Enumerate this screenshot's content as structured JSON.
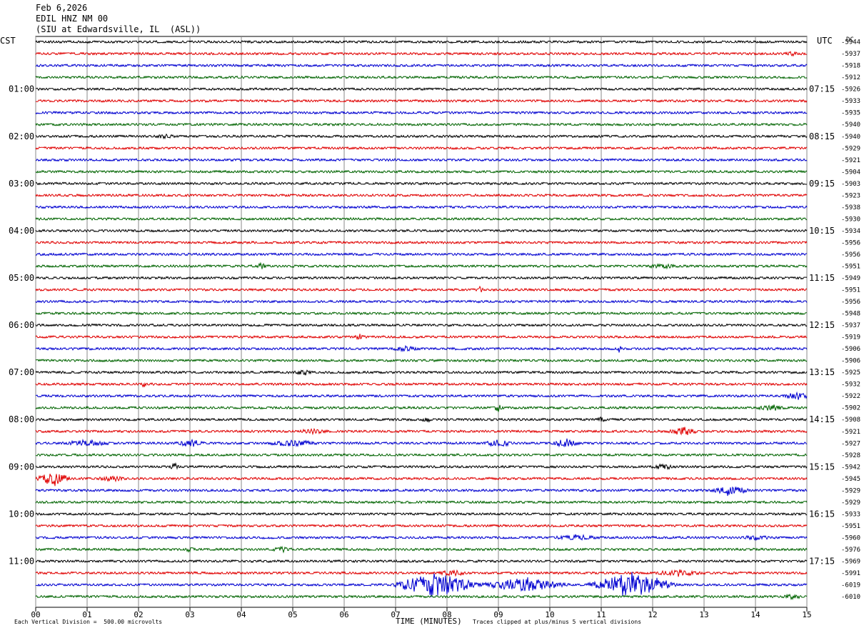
{
  "header": {
    "date": "Feb 6,2026",
    "channel": "EDIL HNZ NM 00",
    "station": "(SIU at Edwardsville, IL  (ASL))"
  },
  "left_tz": "CST",
  "right_tz": "UTC",
  "right_col_header": "DC",
  "footer": {
    "scale_note": "Each Vertical Division =  500.00 microvolts",
    "clip_note": "Traces clipped at plus/minus 5 vertical divisions"
  },
  "chart_data": {
    "type": "line",
    "title": "",
    "xlabel": "TIME (MINUTES)",
    "ylabel": "",
    "xlim": [
      0,
      15
    ],
    "x_ticks": [
      "00",
      "01",
      "02",
      "03",
      "04",
      "05",
      "06",
      "07",
      "08",
      "09",
      "10",
      "11",
      "12",
      "13",
      "14",
      "15"
    ],
    "trace_colors": [
      "#000000",
      "#e00000",
      "#0000d0",
      "#006400"
    ],
    "hour_labels_left": [
      "01:00",
      "02:00",
      "03:00",
      "04:00",
      "05:00",
      "06:00",
      "07:00",
      "08:00",
      "09:00",
      "10:00",
      "11:00"
    ],
    "hour_labels_right": [
      "07:15",
      "08:15",
      "09:15",
      "10:15",
      "11:15",
      "12:15",
      "13:15",
      "14:15",
      "15:15",
      "16:15",
      "17:15"
    ],
    "dc_offsets": [
      "-5944",
      "-5937",
      "-5918",
      "-5912",
      "-5926",
      "-5933",
      "-5935",
      "-5940",
      "-5940",
      "-5929",
      "-5921",
      "-5904",
      "-5903",
      "-5923",
      "-5938",
      "-5930",
      "-5934",
      "-5956",
      "-5956",
      "-5951",
      "-5949",
      "-5951",
      "-5956",
      "-5948",
      "-5937",
      "-5919",
      "-5906",
      "-5906",
      "-5925",
      "-5932",
      "-5922",
      "-5902",
      "-5908",
      "-5921",
      "-5927",
      "-5928",
      "-5942",
      "-5945",
      "-5929",
      "-5929",
      "-5933",
      "-5951",
      "-5960",
      "-5976",
      "-5969",
      "-5991",
      "-6019",
      "-6010"
    ],
    "events": [
      {
        "trace": 1,
        "x": 14.7,
        "amp": 3,
        "width": 0.15
      },
      {
        "trace": 8,
        "x": 2.5,
        "amp": 3,
        "width": 0.2
      },
      {
        "trace": 19,
        "x": 4.4,
        "amp": 4,
        "width": 0.1
      },
      {
        "trace": 19,
        "x": 12.2,
        "amp": 3,
        "width": 0.3
      },
      {
        "trace": 21,
        "x": 8.65,
        "amp": 6,
        "width": 0.05
      },
      {
        "trace": 25,
        "x": 6.3,
        "amp": 4,
        "width": 0.1
      },
      {
        "trace": 26,
        "x": 11.35,
        "amp": 6,
        "width": 0.05
      },
      {
        "trace": 26,
        "x": 7.2,
        "amp": 3,
        "width": 0.3
      },
      {
        "trace": 28,
        "x": 5.2,
        "amp": 4,
        "width": 0.2
      },
      {
        "trace": 29,
        "x": 2.1,
        "amp": 5,
        "width": 0.05
      },
      {
        "trace": 30,
        "x": 14.8,
        "amp": 5,
        "width": 0.3
      },
      {
        "trace": 31,
        "x": 9.0,
        "amp": 5,
        "width": 0.1
      },
      {
        "trace": 31,
        "x": 14.3,
        "amp": 4,
        "width": 0.3
      },
      {
        "trace": 32,
        "x": 7.6,
        "amp": 4,
        "width": 0.1
      },
      {
        "trace": 32,
        "x": 11.0,
        "amp": 4,
        "width": 0.1
      },
      {
        "trace": 33,
        "x": 5.4,
        "amp": 3,
        "width": 0.3
      },
      {
        "trace": 33,
        "x": 12.6,
        "amp": 6,
        "width": 0.3
      },
      {
        "trace": 34,
        "x": 1.0,
        "amp": 4,
        "width": 0.5
      },
      {
        "trace": 34,
        "x": 3.0,
        "amp": 5,
        "width": 0.3
      },
      {
        "trace": 34,
        "x": 5.0,
        "amp": 5,
        "width": 0.5
      },
      {
        "trace": 34,
        "x": 9.0,
        "amp": 5,
        "width": 0.3
      },
      {
        "trace": 34,
        "x": 10.3,
        "amp": 6,
        "width": 0.3
      },
      {
        "trace": 36,
        "x": 2.7,
        "amp": 5,
        "width": 0.1
      },
      {
        "trace": 36,
        "x": 12.2,
        "amp": 4,
        "width": 0.2
      },
      {
        "trace": 37,
        "x": 0.35,
        "amp": 10,
        "width": 0.35
      },
      {
        "trace": 37,
        "x": 1.5,
        "amp": 3,
        "width": 0.3
      },
      {
        "trace": 38,
        "x": 13.5,
        "amp": 7,
        "width": 0.4
      },
      {
        "trace": 42,
        "x": 10.5,
        "amp": 3,
        "width": 0.5
      },
      {
        "trace": 42,
        "x": 14.0,
        "amp": 3,
        "width": 0.3
      },
      {
        "trace": 43,
        "x": 3.0,
        "amp": 4,
        "width": 0.1
      },
      {
        "trace": 43,
        "x": 4.8,
        "amp": 3,
        "width": 0.2
      },
      {
        "trace": 45,
        "x": 8.1,
        "amp": 4,
        "width": 0.3
      },
      {
        "trace": 45,
        "x": 12.5,
        "amp": 4,
        "width": 0.5
      },
      {
        "trace": 46,
        "x": 7.8,
        "amp": 18,
        "width": 0.9
      },
      {
        "trace": 46,
        "x": 9.5,
        "amp": 10,
        "width": 0.9
      },
      {
        "trace": 46,
        "x": 11.6,
        "amp": 18,
        "width": 0.9
      },
      {
        "trace": 47,
        "x": 14.7,
        "amp": 3,
        "width": 0.2
      }
    ]
  }
}
